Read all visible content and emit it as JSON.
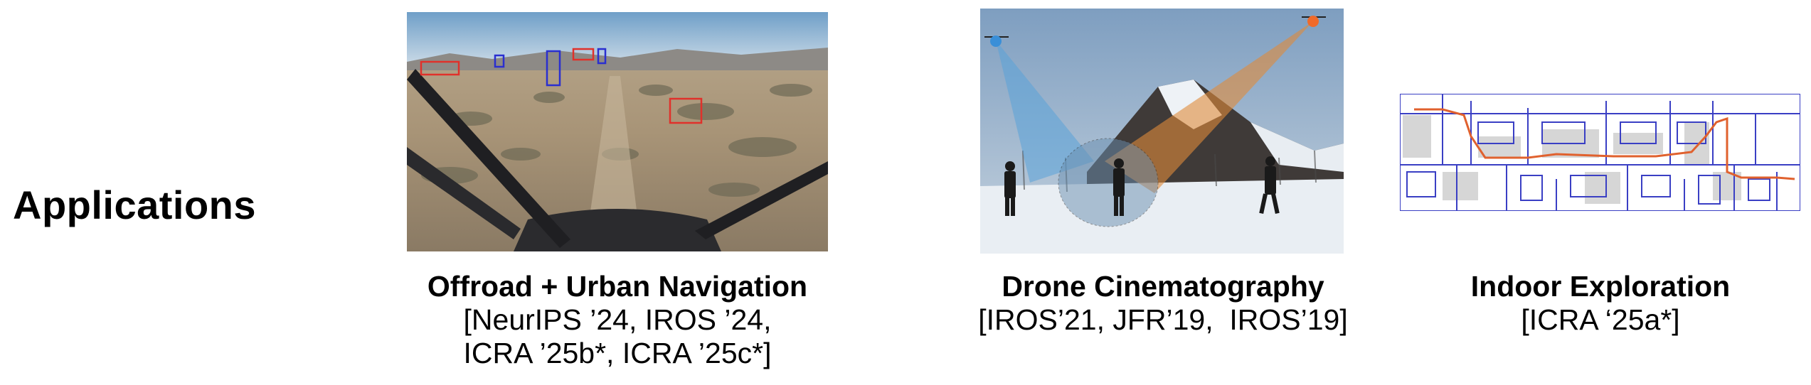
{
  "heading": "Applications",
  "applications": [
    {
      "title": "Offroad + Urban Navigation",
      "refs_line1": "[NeurIPS ’24, IROS ’24,",
      "refs_line2": "ICRA ’25b*, ICRA ’25c*]"
    },
    {
      "title": "Drone Cinematography",
      "refs_line1": "[IROS’21, JFR’19,  IROS’19]"
    },
    {
      "title": "Indoor Exploration",
      "refs_line1": "[ICRA ‘25a*]"
    }
  ],
  "colors": {
    "detection_red": "#e0312b",
    "detection_blue": "#2a2fd0",
    "camera_blue": "#5aa2d8",
    "camera_orange": "#e08a3a",
    "map_wall": "#3a3fc4",
    "map_path": "#e0612e"
  }
}
